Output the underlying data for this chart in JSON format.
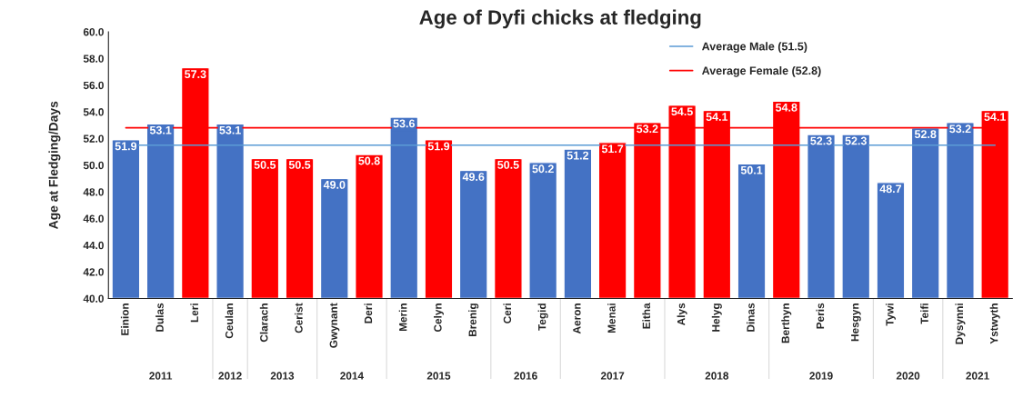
{
  "chart_data": {
    "type": "bar",
    "title": "Age of Dyfi chicks at fledging",
    "ylabel": "Age at Fledging/Days",
    "categories": [
      "Einion",
      "Dulas",
      "Leri",
      "Ceulan",
      "Clarach",
      "Cerist",
      "Gwynant",
      "Deri",
      "Merin",
      "Celyn",
      "Brenig",
      "Ceri",
      "Tegid",
      "Aeron",
      "Menai",
      "Eitha",
      "Alys",
      "Helyg",
      "Dinas",
      "Berthyn",
      "Peris",
      "Hesgyn",
      "Tywi",
      "Teifi",
      "Dysynni",
      "Ystwyth"
    ],
    "values": [
      51.9,
      53.1,
      57.3,
      53.1,
      50.5,
      50.5,
      49.0,
      50.8,
      53.6,
      51.9,
      49.6,
      50.5,
      50.2,
      51.2,
      51.7,
      53.2,
      54.5,
      54.1,
      50.1,
      54.8,
      52.3,
      52.3,
      48.7,
      52.8,
      53.2,
      54.1
    ],
    "colors": [
      "#4472c4",
      "#4472c4",
      "#ff0000",
      "#4472c4",
      "#ff0000",
      "#ff0000",
      "#4472c4",
      "#ff0000",
      "#4472c4",
      "#ff0000",
      "#4472c4",
      "#ff0000",
      "#4472c4",
      "#4472c4",
      "#ff0000",
      "#ff0000",
      "#ff0000",
      "#ff0000",
      "#4472c4",
      "#ff0000",
      "#4472c4",
      "#4472c4",
      "#4472c4",
      "#4472c4",
      "#4472c4",
      "#ff0000"
    ],
    "value_labels": [
      "51.9",
      "53.1",
      "57.3",
      "53.1",
      "50.5",
      "50.5",
      "49.0",
      "50.8",
      "53.6",
      "51.9",
      "49.6",
      "50.5",
      "50.2",
      "51.2",
      "51.7",
      "53.2",
      "54.5",
      "54.1",
      "50.1",
      "54.8",
      "52.3",
      "52.3",
      "48.7",
      "52.8",
      "53.2",
      "54.1"
    ],
    "ylim": [
      40,
      60
    ],
    "yticks": [
      {
        "value": 40,
        "label": "40.0"
      },
      {
        "value": 42,
        "label": "42.0"
      },
      {
        "value": 44,
        "label": "44.0"
      },
      {
        "value": 46,
        "label": "46.0"
      },
      {
        "value": 48,
        "label": "48.0"
      },
      {
        "value": 50,
        "label": "50.0"
      },
      {
        "value": 52,
        "label": "52.0"
      },
      {
        "value": 54,
        "label": "54.0"
      },
      {
        "value": 56,
        "label": "56.0"
      },
      {
        "value": 58,
        "label": "58.0"
      },
      {
        "value": 60,
        "label": "60.0"
      }
    ],
    "ref_lines": [
      {
        "axis": "y",
        "value": 51.5,
        "label": "Average Male (51.5)",
        "color": "#5b9bd5"
      },
      {
        "axis": "y",
        "value": 52.8,
        "label": "Average Female (52.8)",
        "color": "#ff0000"
      }
    ],
    "annotations": [
      "2011",
      "2012",
      "2013",
      "2014",
      "2015",
      "2016",
      "2017",
      "2018",
      "2019",
      "2020",
      "2021"
    ],
    "legend": "top right",
    "grid": false
  }
}
